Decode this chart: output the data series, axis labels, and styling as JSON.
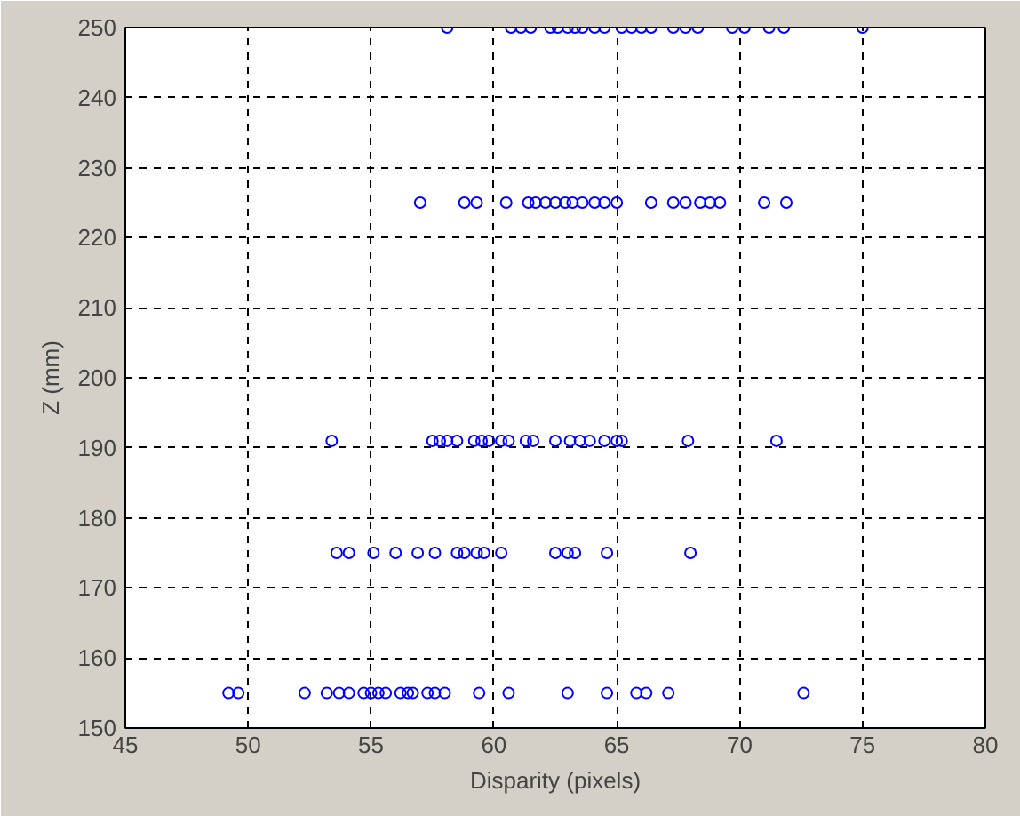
{
  "chart_data": {
    "type": "scatter",
    "xlabel": "Disparity (pixels)",
    "ylabel": "Z (mm)",
    "x": [
      49.2,
      49.6,
      52.3,
      53.2,
      53.7,
      54.1,
      54.7,
      55.0,
      55.3,
      55.6,
      56.2,
      56.5,
      56.7,
      57.3,
      57.6,
      58.0,
      59.4,
      60.6,
      63.0,
      64.6,
      65.8,
      66.2,
      67.1,
      72.6,
      53.6,
      54.1,
      55.1,
      56.0,
      56.9,
      57.6,
      58.5,
      58.8,
      59.3,
      59.6,
      60.3,
      62.5,
      63.0,
      63.3,
      64.6,
      68.0,
      53.4,
      57.5,
      57.8,
      58.1,
      58.5,
      59.2,
      59.5,
      59.8,
      60.3,
      60.6,
      61.3,
      61.6,
      62.5,
      63.1,
      63.5,
      63.9,
      64.5,
      65.0,
      65.2,
      67.9,
      71.5,
      57.0,
      58.8,
      59.3,
      60.5,
      61.4,
      61.7,
      62.1,
      62.5,
      62.9,
      63.2,
      63.6,
      64.1,
      64.5,
      65.0,
      66.4,
      67.3,
      67.8,
      68.4,
      68.8,
      69.2,
      71.0,
      71.9,
      58.1,
      60.7,
      61.1,
      61.5,
      62.3,
      62.6,
      63.0,
      63.3,
      63.6,
      64.1,
      64.5,
      65.2,
      65.6,
      66.0,
      66.4,
      67.3,
      67.8,
      68.3,
      69.7,
      70.2,
      71.2,
      71.8,
      75.0
    ],
    "series": [
      {
        "color": "#0000ff",
        "values": [
          155,
          155,
          155,
          155,
          155,
          155,
          155,
          155,
          155,
          155,
          155,
          155,
          155,
          155,
          155,
          155,
          155,
          155,
          155,
          155,
          155,
          155,
          155,
          155,
          175,
          175,
          175,
          175,
          175,
          175,
          175,
          175,
          175,
          175,
          175,
          175,
          175,
          175,
          175,
          175,
          191,
          191,
          191,
          191,
          191,
          191,
          191,
          191,
          191,
          191,
          191,
          191,
          191,
          191,
          191,
          191,
          191,
          191,
          191,
          191,
          191,
          225,
          225,
          225,
          225,
          225,
          225,
          225,
          225,
          225,
          225,
          225,
          225,
          225,
          225,
          225,
          225,
          225,
          225,
          225,
          225,
          225,
          225,
          250,
          250,
          250,
          250,
          250,
          250,
          250,
          250,
          250,
          250,
          250,
          250,
          250,
          250,
          250,
          250,
          250,
          250,
          250,
          250,
          250,
          250,
          250
        ]
      }
    ],
    "xlim": [
      45,
      80
    ],
    "ylim": [
      150,
      250
    ],
    "xticks": [
      45,
      50,
      55,
      60,
      65,
      70,
      75,
      80
    ],
    "yticks": [
      150,
      160,
      170,
      180,
      190,
      200,
      210,
      220,
      230,
      240,
      250
    ],
    "grid": true,
    "marker": "circle"
  }
}
